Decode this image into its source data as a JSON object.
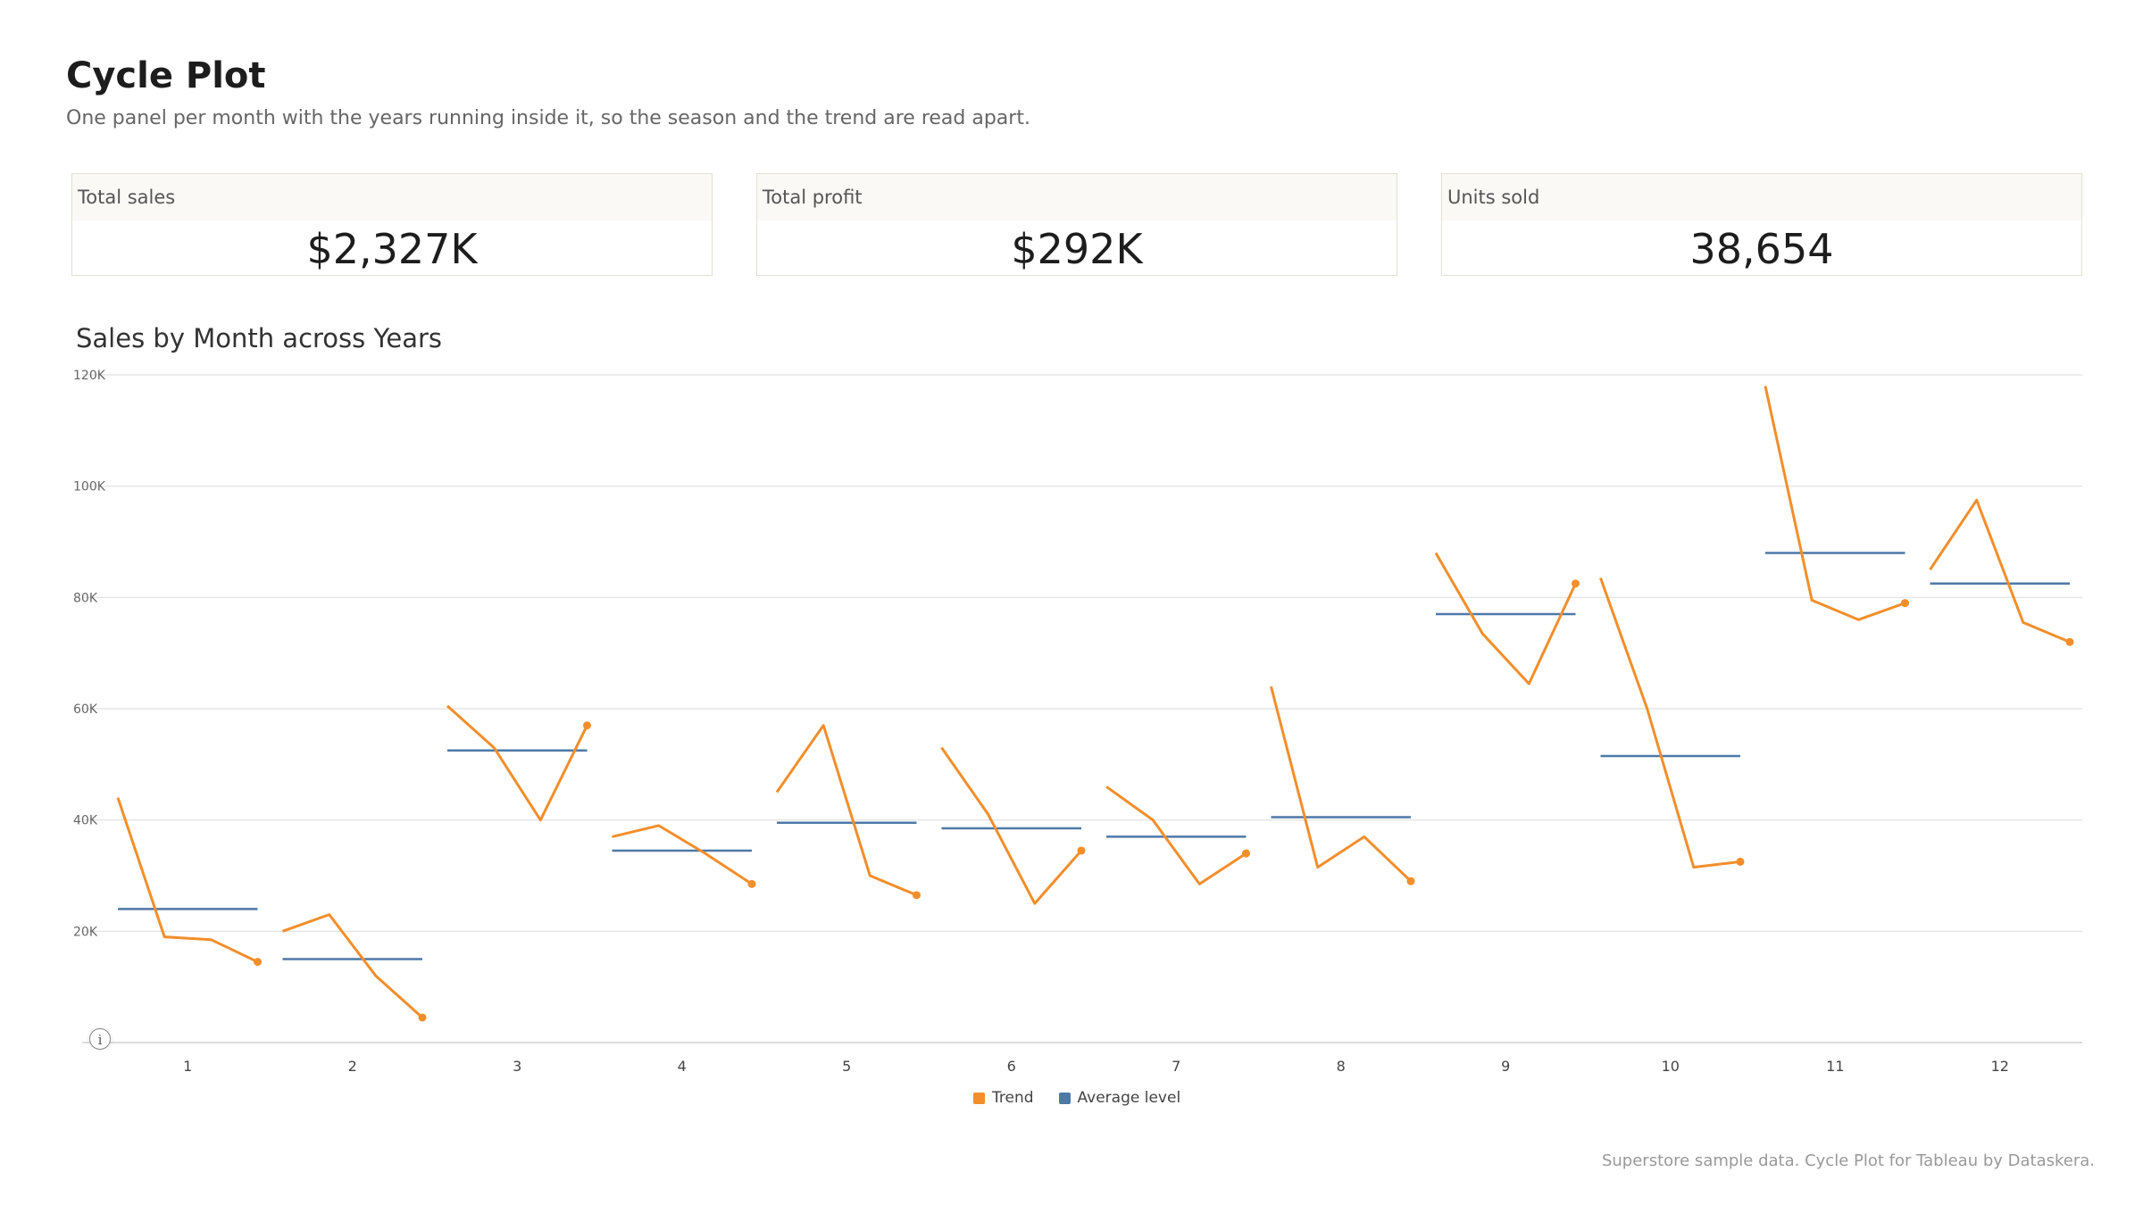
{
  "header": {
    "title": "Cycle Plot",
    "subtitle": "One panel per month with the years running inside it, so the season and the trend are read apart."
  },
  "kpis": [
    {
      "label": "Total sales",
      "value": "$2,327K"
    },
    {
      "label": "Total profit",
      "value": "$292K"
    },
    {
      "label": "Units sold",
      "value": "38,654"
    }
  ],
  "chart_title": "Sales by Month across Years",
  "legend": {
    "trend": "Trend",
    "average": "Average level"
  },
  "footer": "Superstore sample data. Cycle Plot for Tableau by Dataskera.",
  "icons": {
    "info": "info-icon"
  },
  "colors": {
    "trend": "#f28e2b",
    "average": "#4e79a7",
    "grid": "#e6e6e6",
    "axis_text": "#666666"
  },
  "chart_data": {
    "type": "line",
    "title": "Sales by Month across Years",
    "xlabel": "",
    "ylabel": "",
    "ylim": [
      0,
      120000
    ],
    "yticks": [
      "20K",
      "40K",
      "60K",
      "80K",
      "100K",
      "120K"
    ],
    "ytick_values": [
      20000,
      40000,
      60000,
      80000,
      100000,
      120000
    ],
    "categories": [
      "1",
      "2",
      "3",
      "4",
      "5",
      "6",
      "7",
      "8",
      "9",
      "10",
      "11",
      "12"
    ],
    "grid": true,
    "legend_position": "bottom",
    "series": [
      {
        "name": "Trend",
        "values": [
          [
            44000,
            19000,
            18500,
            14500
          ],
          [
            20000,
            23000,
            12000,
            4500
          ],
          [
            60500,
            53000,
            40000,
            57000
          ],
          [
            37000,
            39000,
            34000,
            28500
          ],
          [
            45000,
            57000,
            30000,
            26500
          ],
          [
            53000,
            41000,
            25000,
            34500
          ],
          [
            46000,
            40000,
            28500,
            34000
          ],
          [
            64000,
            31500,
            37000,
            29000
          ],
          [
            88000,
            73500,
            64500,
            82500
          ],
          [
            83500,
            60000,
            31500,
            32500
          ],
          [
            118000,
            79500,
            76000,
            79000
          ],
          [
            85000,
            97500,
            75500,
            72000
          ]
        ]
      },
      {
        "name": "Average level",
        "values": [
          24000,
          15000,
          52500,
          34500,
          39500,
          38500,
          37000,
          40500,
          77000,
          51500,
          88000,
          82500
        ]
      }
    ]
  }
}
